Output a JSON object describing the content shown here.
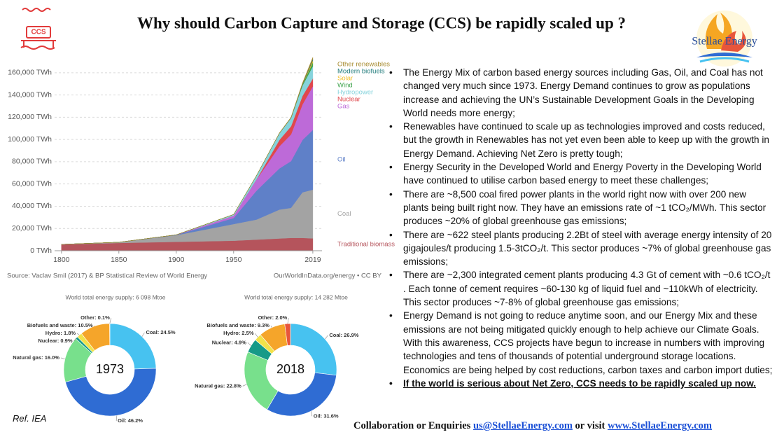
{
  "header": {
    "title": "Why should Carbon Capture and Storage (CCS) be rapidly scaled up ?",
    "icon_text": "CCS",
    "logo_text": "Stellae Energy"
  },
  "chart_data": [
    {
      "type": "area",
      "stacked": true,
      "grid": true,
      "x": [
        1800,
        1850,
        1900,
        1950,
        1970,
        1990,
        2000,
        2010,
        2019
      ],
      "xlim": [
        1794,
        2027
      ],
      "xticks": [
        1800,
        1850,
        1900,
        1950,
        2019
      ],
      "ylim": [
        0,
        175000
      ],
      "yticks": [
        {
          "value": 0,
          "label": "0 TWh"
        },
        {
          "value": 20000,
          "label": "20,000 TWh"
        },
        {
          "value": 40000,
          "label": "40,000 TWh"
        },
        {
          "value": 60000,
          "label": "60,000 TWh"
        },
        {
          "value": 80000,
          "label": "80,000 TWh"
        },
        {
          "value": 100000,
          "label": "100,000 TWh"
        },
        {
          "value": 120000,
          "label": "120,000 TWh"
        },
        {
          "value": 140000,
          "label": "140,000 TWh"
        },
        {
          "value": 160000,
          "label": "160,000 TWh"
        }
      ],
      "series": [
        {
          "name": "Traditional biomass",
          "color": "#b5545c",
          "values": [
            5600,
            7000,
            8000,
            9000,
            10000,
            11000,
            11500,
            11500,
            11100
          ]
        },
        {
          "name": "Coal",
          "color": "#a3a3a3",
          "values": [
            100,
            600,
            6000,
            15000,
            18000,
            26000,
            27000,
            41000,
            43800
          ]
        },
        {
          "name": "Oil",
          "color": "#5f80c8",
          "values": [
            0,
            0,
            200,
            5400,
            26000,
            37000,
            42000,
            47000,
            53600
          ]
        },
        {
          "name": "Gas",
          "color": "#bd6ad8",
          "values": [
            0,
            0,
            60,
            2100,
            10000,
            20000,
            24000,
            32000,
            39300
          ]
        },
        {
          "name": "Nuclear",
          "color": "#e0474c",
          "values": [
            0,
            0,
            0,
            0,
            200,
            5700,
            7300,
            7600,
            7000
          ]
        },
        {
          "name": "Hydropower",
          "color": "#86d3dc",
          "values": [
            0,
            0,
            0,
            1100,
            3400,
            6000,
            7400,
            9300,
            11000
          ]
        },
        {
          "name": "Wind",
          "color": "#3fa34d",
          "values": [
            0,
            0,
            0,
            0,
            0,
            0,
            100,
            900,
            3500
          ]
        },
        {
          "name": "Solar",
          "color": "#f2c12e",
          "values": [
            0,
            0,
            0,
            0,
            0,
            0,
            0,
            80,
            1800
          ]
        },
        {
          "name": "Modern biofuels",
          "color": "#1f7a7a",
          "values": [
            0,
            0,
            0,
            0,
            0,
            0,
            100,
            500,
            1100
          ]
        },
        {
          "name": "Other renewables",
          "color": "#a68a2d",
          "values": [
            0,
            0,
            0,
            0,
            0,
            400,
            500,
            800,
            1600
          ]
        }
      ],
      "source": "Source: Vaclav Smil (2017) & BP Statistical Review of World Energy",
      "credit": "OurWorldInData.org/energy • CC BY"
    },
    {
      "type": "pie",
      "title": "World total energy supply: 6 098 Mtoe",
      "center_label": "1973",
      "values": [
        24.5,
        46.2,
        16.0,
        0.9,
        1.8,
        10.5,
        0.1
      ],
      "value_labels": [
        "Coal: 24.5%",
        "Oil: 46.2%",
        "Natural gas: 16.0%",
        "Nuclear: 0.9%",
        "Hydro: 1.8%",
        "Biofuels and waste: 10.5%",
        "Other: 0.1%"
      ],
      "colors": [
        "#47c2f0",
        "#2f6cd3",
        "#78e08c",
        "#169a88",
        "#f2e24a",
        "#f5a52a",
        "#e8553b"
      ]
    },
    {
      "type": "pie",
      "title": "World total energy supply: 14 282 Mtoe",
      "center_label": "2018",
      "values": [
        26.9,
        31.6,
        22.8,
        4.9,
        2.5,
        9.3,
        2.0
      ],
      "value_labels": [
        "Coal: 26.9%",
        "Oil: 31.6%",
        "Natural gas: 22.8%",
        "Nuclear: 4.9%",
        "Hydro: 2.5%",
        "Biofuels and waste: 9.3%",
        "Other: 2.0%"
      ],
      "colors": [
        "#47c2f0",
        "#2f6cd3",
        "#78e08c",
        "#169a88",
        "#f2e24a",
        "#f5a52a",
        "#e8553b"
      ]
    }
  ],
  "bullets": [
    "The Energy Mix of carbon based energy sources including Gas, Oil, and Coal has not changed very much since 1973.  Energy Demand continues to grow as populations increase and achieving the UN’s Sustainable Development Goals in the Developing World needs more energy;",
    "Renewables have continued to scale up as technologies improved and costs reduced, but the growth in Renewables has not yet even been able to keep up with the growth in Energy Demand.  Achieving Net Zero is pretty tough;",
    "Energy Security in the Developed World and Energy Poverty in the Developing World have continued to utilise carbon based energy to meet these challenges;",
    "There are ~8,500 coal fired power plants in the world right now with over 200 new plants being built right now. They have an emissions rate of ~1 tCO₂/MWh.  This sector produces ~20% of global greenhouse gas emissions;",
    "There are ~622 steel plants producing 2.2Bt of steel with average energy intensity of 20 gigajoules/t producing 1.5-3tCO₂/t.  This sector produces ~7% of global greenhouse gas emissions;",
    "There are ~2,300 integrated cement plants producing 4.3 Gt of cement with ~0.6 tCO₂/t . Each tonne of cement requires ~60-130 kg of liquid fuel and ~110kWh of electricity.  This sector produces ~7-8% of global greenhouse gas emissions;",
    "Energy Demand is not going to reduce anytime soon, and our Energy Mix and these emissions are not being mitigated quickly enough to help achieve our Climate Goals.  With this awareness, CCS projects have begun to increase in numbers with improving technologies and tens of thousands of potential underground storage locations.  Economics are being helped by cost reductions, carbon taxes and carbon import duties;",
    "If the world is serious about Net Zero, CCS needs to be rapidly scaled up now."
  ],
  "footer": {
    "prefix": "Collaboration or Enquiries",
    "email": "us@StellaeEnergy.com",
    "middle": "or visit",
    "website": "www.StellaeEnergy.com"
  },
  "reference": "Ref. IEA"
}
